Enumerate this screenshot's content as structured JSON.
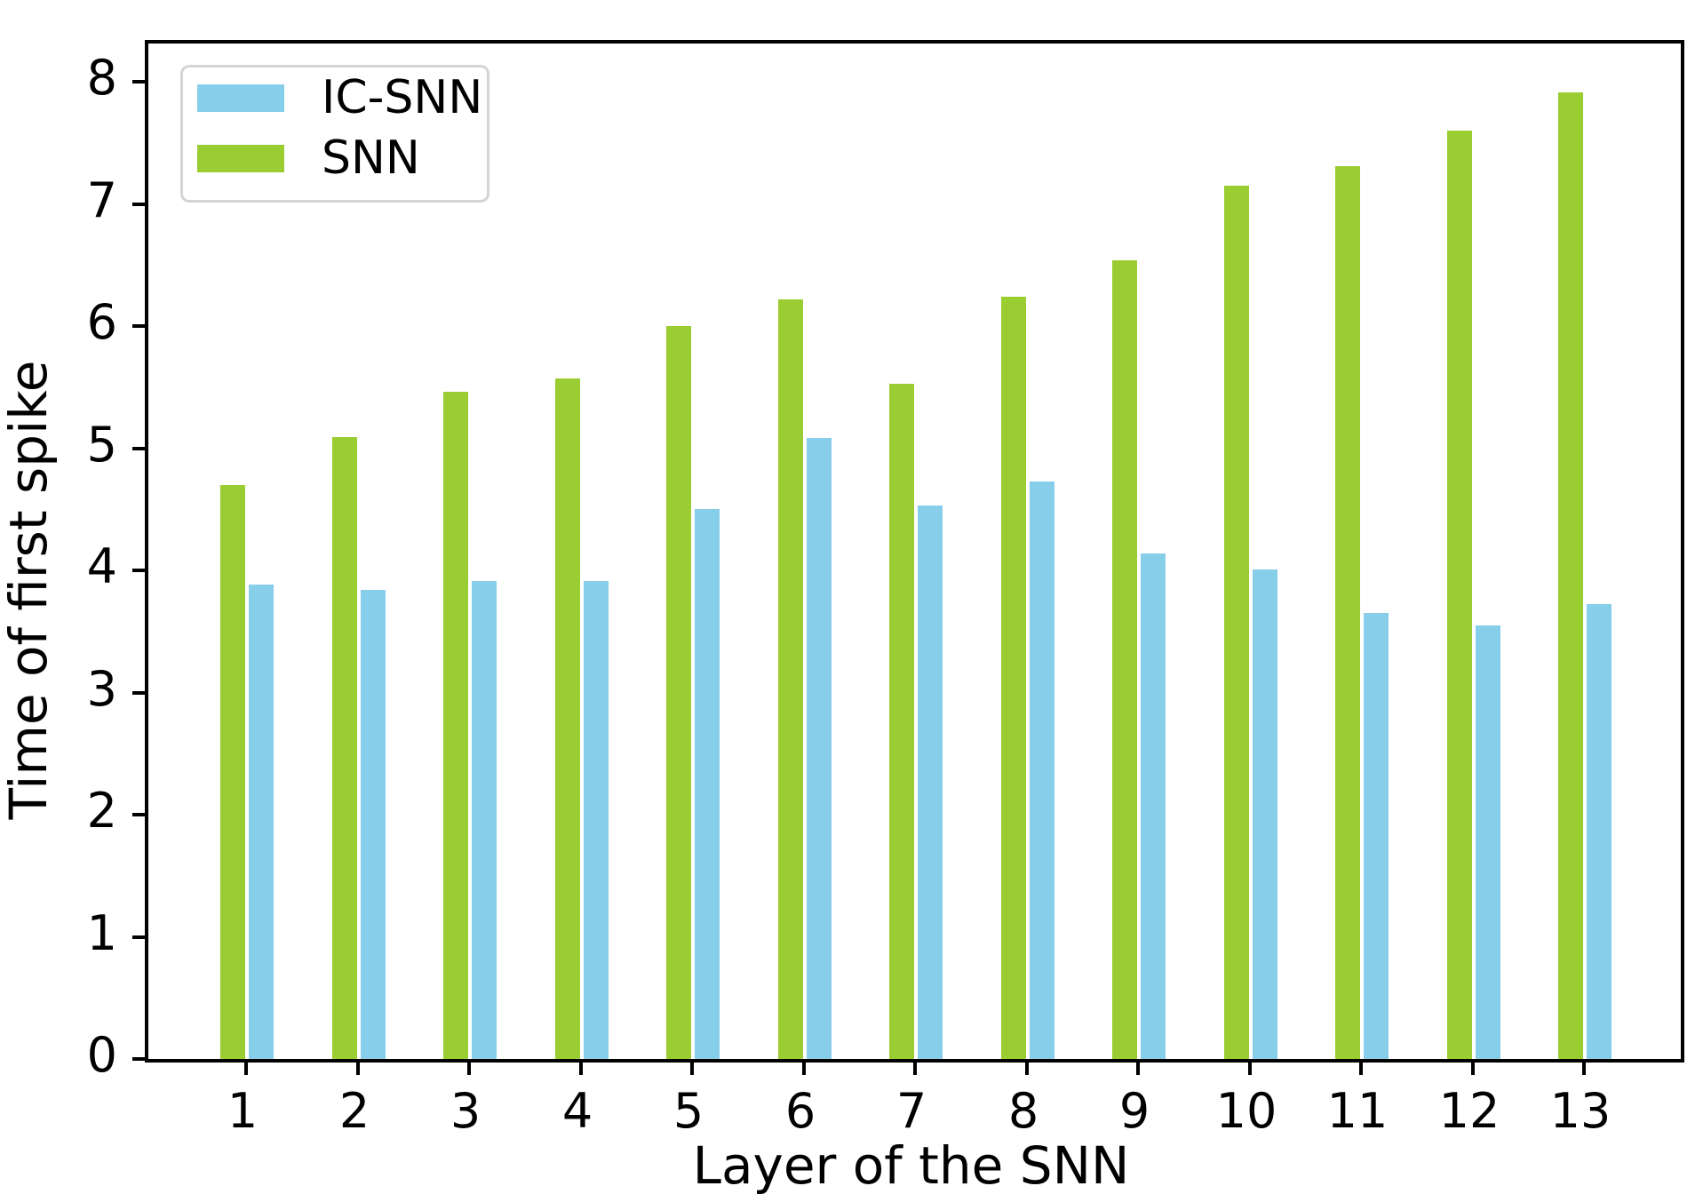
{
  "figure": {
    "background": "#ffffff",
    "axis_color": "#000000"
  },
  "legend": {
    "position": "upper left",
    "entries": [
      {
        "label": "IC-SNN",
        "color": "#87CEEB"
      },
      {
        "label": "SNN",
        "color": "#9ACD32"
      }
    ]
  },
  "chart_data": {
    "type": "bar",
    "title": "",
    "xlabel": "Layer of the SNN",
    "ylabel": "Time of first spike",
    "categories": [
      "1",
      "2",
      "3",
      "4",
      "5",
      "6",
      "7",
      "8",
      "9",
      "10",
      "11",
      "12",
      "13"
    ],
    "series": [
      {
        "name": "SNN",
        "color": "#9ACD32",
        "values": [
          4.7,
          5.09,
          5.46,
          5.57,
          6.0,
          6.22,
          5.53,
          6.24,
          6.54,
          7.15,
          7.31,
          7.6,
          7.91
        ]
      },
      {
        "name": "IC-SNN",
        "color": "#87CEEB",
        "values": [
          3.88,
          3.84,
          3.91,
          3.91,
          4.5,
          5.08,
          4.53,
          4.73,
          4.14,
          4.01,
          3.65,
          3.55,
          3.72
        ]
      }
    ],
    "bar_order_in_group": [
      "SNN",
      "IC-SNN"
    ],
    "yticks": [
      0,
      1,
      2,
      3,
      4,
      5,
      6,
      7,
      8
    ],
    "ylim": [
      0,
      8.31
    ],
    "grid": false,
    "legend_position": "upper left"
  }
}
